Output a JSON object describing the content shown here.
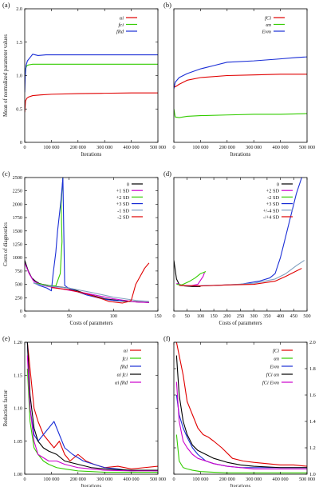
{
  "chart_data": [
    {
      "id": "a",
      "panel_label": "(a)",
      "type": "line",
      "xlabel": "Iterations",
      "ylabel": "Mean of normalized parameter values",
      "xlim": [
        0,
        500000
      ],
      "ylim": [
        0,
        2.0
      ],
      "xticks": [
        0,
        100000,
        200000,
        300000,
        400000,
        500000
      ],
      "xtick_labels": [
        "0",
        "100 000",
        "200 000",
        "300 000",
        "400 000",
        "500 000"
      ],
      "yticks": [
        0,
        0.5,
        1.0,
        1.5,
        2.0
      ],
      "ytick_labels": [
        "0",
        "0.5",
        "1.0",
        "1.5",
        "2.0"
      ],
      "legend_position": "top-right",
      "series": [
        {
          "name": "αi",
          "color": "#e00000",
          "x": [
            0,
            3000,
            8000,
            15000,
            30000,
            60000,
            100000,
            200000,
            300000,
            400000,
            500000
          ],
          "y": [
            0.45,
            0.62,
            0.66,
            0.68,
            0.7,
            0.71,
            0.72,
            0.73,
            0.735,
            0.74,
            0.74
          ]
        },
        {
          "name": "fci",
          "color": "#33cc00",
          "x": [
            0,
            3000,
            8000,
            15000,
            30000,
            60000,
            100000,
            200000,
            300000,
            400000,
            500000
          ],
          "y": [
            0.9,
            1.1,
            1.15,
            1.16,
            1.17,
            1.17,
            1.17,
            1.17,
            1.17,
            1.17,
            1.17
          ]
        },
        {
          "name": "fRd",
          "color": "#1a2ed6",
          "x": [
            0,
            2000,
            5000,
            10000,
            20000,
            30000,
            50000,
            80000,
            150000,
            300000,
            400000,
            500000
          ],
          "y": [
            0.75,
            1.0,
            1.15,
            1.22,
            1.27,
            1.32,
            1.3,
            1.31,
            1.31,
            1.31,
            1.31,
            1.31
          ]
        }
      ]
    },
    {
      "id": "b",
      "panel_label": "(b)",
      "type": "line",
      "xlabel": "Iterations",
      "xlim": [
        0,
        500000
      ],
      "ylim": [
        0,
        2.0
      ],
      "xticks": [
        0,
        100000,
        200000,
        300000,
        400000,
        500000
      ],
      "xtick_labels": [
        "0",
        "100 000",
        "200 000",
        "300 000",
        "400 000",
        "500 000"
      ],
      "legend_position": "top-right",
      "series": [
        {
          "name": "fCi",
          "color": "#e00000",
          "x": [
            0,
            5000,
            20000,
            50000,
            100000,
            200000,
            300000,
            400000,
            500000
          ],
          "y": [
            0.85,
            0.83,
            0.87,
            0.93,
            0.97,
            1.0,
            1.01,
            1.02,
            1.02
          ]
        },
        {
          "name": "αn",
          "color": "#33cc00",
          "x": [
            0,
            5000,
            20000,
            50000,
            100000,
            200000,
            300000,
            400000,
            500000
          ],
          "y": [
            0.5,
            0.38,
            0.37,
            0.39,
            0.4,
            0.41,
            0.42,
            0.42,
            0.43
          ]
        },
        {
          "name": "Evm",
          "color": "#1a2ed6",
          "x": [
            0,
            5000,
            20000,
            50000,
            100000,
            150000,
            200000,
            300000,
            400000,
            460000,
            500000
          ],
          "y": [
            0.8,
            0.9,
            0.97,
            1.03,
            1.1,
            1.15,
            1.2,
            1.22,
            1.25,
            1.27,
            1.28
          ]
        }
      ]
    },
    {
      "id": "c",
      "panel_label": "(c)",
      "type": "line",
      "xlabel": "Costs of parameters",
      "ylabel": "Costs of diagnostics",
      "xlim": [
        0,
        150
      ],
      "ylim": [
        0,
        2500
      ],
      "xticks": [
        0,
        50,
        100,
        150
      ],
      "xtick_labels": [
        "0",
        "50",
        "100",
        "150"
      ],
      "yticks": [
        0,
        250,
        500,
        750,
        1000,
        1250,
        1500,
        1750,
        2000,
        2250,
        2500
      ],
      "ytick_labels": [
        "0",
        "250",
        "500",
        "750",
        "1000",
        "1250",
        "1500",
        "1750",
        "2000",
        "2250",
        "2500"
      ],
      "legend_position": "top-right",
      "series": [
        {
          "name": "0",
          "color": "#000000",
          "x": [
            0,
            4,
            8,
            12,
            16,
            20,
            30,
            50,
            70,
            90,
            110,
            130,
            140
          ],
          "y": [
            950,
            750,
            620,
            560,
            520,
            500,
            470,
            430,
            320,
            230,
            190,
            170,
            160
          ]
        },
        {
          "name": "+1 SD",
          "color": "#cc00cc",
          "x": [
            0,
            5,
            10,
            20,
            40,
            70,
            100,
            125,
            140
          ],
          "y": [
            900,
            700,
            560,
            480,
            420,
            330,
            230,
            170,
            160
          ]
        },
        {
          "name": "+2 SD",
          "color": "#33cc00",
          "x": [
            12,
            20,
            25,
            35,
            40,
            42,
            41,
            43
          ],
          "y": [
            520,
            500,
            480,
            470,
            700,
            1300,
            2000,
            2500
          ]
        },
        {
          "name": "+3 SD",
          "color": "#1a2ed6",
          "x": [
            10,
            18,
            25,
            30,
            32,
            35,
            37,
            39,
            41,
            43,
            45,
            50,
            70,
            90,
            100,
            110
          ],
          "y": [
            530,
            470,
            430,
            380,
            700,
            1100,
            1500,
            1800,
            2100,
            2500,
            480,
            420,
            300,
            220,
            200,
            190
          ]
        },
        {
          "name": "-1 SD",
          "color": "#7f9fbf",
          "x": [
            10,
            25,
            50,
            75,
            100,
            125,
            140
          ],
          "y": [
            520,
            470,
            430,
            350,
            260,
            200,
            180
          ]
        },
        {
          "name": "-2 SD",
          "color": "#e00000",
          "x": [
            30,
            50,
            70,
            85,
            95,
            100,
            105,
            110,
            115,
            120,
            125,
            130,
            135,
            140
          ],
          "y": [
            440,
            400,
            320,
            240,
            180,
            170,
            160,
            150,
            170,
            200,
            500,
            650,
            800,
            900
          ]
        }
      ]
    },
    {
      "id": "d",
      "panel_label": "(d)",
      "type": "line",
      "xlabel": "Costs of parameters",
      "xlim": [
        0,
        500
      ],
      "ylim": [
        0,
        2500
      ],
      "xticks": [
        0,
        50,
        100,
        150,
        200,
        250,
        300,
        350,
        400,
        450,
        500
      ],
      "xtick_labels": [
        "0",
        "50",
        "100",
        "150",
        "200",
        "250",
        "300",
        "350",
        "400",
        "450",
        "500"
      ],
      "legend_position": "top-right",
      "series": [
        {
          "name": "0",
          "color": "#000000",
          "x": [
            0,
            10,
            20,
            40,
            70,
            100
          ],
          "y": [
            950,
            600,
            500,
            470,
            460,
            460
          ]
        },
        {
          "name": "+2 SD",
          "color": "#cc00cc",
          "x": [
            10,
            30,
            60,
            90,
            110,
            115
          ],
          "y": [
            520,
            480,
            470,
            500,
            650,
            720
          ]
        },
        {
          "name": "-2 SD",
          "color": "#33cc00",
          "x": [
            10,
            30,
            60,
            80,
            100,
            120
          ],
          "y": [
            500,
            490,
            560,
            620,
            700,
            740
          ]
        },
        {
          "name": "+3 SD",
          "color": "#1a2ed6",
          "x": [
            20,
            80,
            150,
            250,
            320,
            360,
            380,
            400,
            420,
            440,
            460,
            480
          ],
          "y": [
            480,
            470,
            480,
            500,
            560,
            620,
            700,
            1000,
            1400,
            1800,
            2200,
            2500
          ]
        },
        {
          "name": "+/-4 SD",
          "color": "#7f9fbf",
          "x": [
            20,
            100,
            200,
            300,
            380,
            420,
            460,
            490
          ],
          "y": [
            480,
            470,
            490,
            520,
            600,
            700,
            850,
            950
          ]
        },
        {
          "name": "-/+4 SD",
          "color": "#e00000",
          "x": [
            20,
            100,
            200,
            300,
            380,
            420,
            460,
            480
          ],
          "y": [
            480,
            470,
            490,
            500,
            560,
            650,
            750,
            800
          ]
        }
      ]
    },
    {
      "id": "e",
      "panel_label": "(e)",
      "type": "line",
      "xlabel": "Iterations",
      "ylabel": "Reduction factor",
      "xlim": [
        0,
        500000
      ],
      "ylim": [
        1.0,
        1.2
      ],
      "xticks": [
        0,
        100000,
        200000,
        300000,
        400000,
        500000
      ],
      "xtick_labels": [
        "0",
        "100 000",
        "200 000",
        "300 000",
        "400 000",
        "500 000"
      ],
      "yticks": [
        1.0,
        1.05,
        1.1,
        1.15,
        1.2
      ],
      "ytick_labels": [
        "1.00",
        "1.05",
        "1.10",
        "1.15",
        "1.20"
      ],
      "legend_position": "top-right",
      "series": [
        {
          "name": "αi",
          "color": "#e00000",
          "x": [
            10000,
            20000,
            35000,
            50000,
            70000,
            90000,
            110000,
            130000,
            150000,
            170000,
            200000,
            230000,
            260000,
            300000,
            350000,
            400000,
            450000,
            500000
          ],
          "y": [
            1.2,
            1.16,
            1.1,
            1.08,
            1.06,
            1.05,
            1.04,
            1.05,
            1.03,
            1.02,
            1.03,
            1.02,
            1.015,
            1.01,
            1.012,
            1.008,
            1.01,
            1.012
          ]
        },
        {
          "name": "fci",
          "color": "#33cc00",
          "x": [
            10000,
            20000,
            35000,
            50000,
            70000,
            90000,
            120000,
            150000,
            200000,
            250000,
            300000,
            400000,
            500000
          ],
          "y": [
            1.16,
            1.08,
            1.04,
            1.03,
            1.02,
            1.015,
            1.01,
            1.008,
            1.005,
            1.004,
            1.003,
            1.003,
            1.003
          ]
        },
        {
          "name": "fRd",
          "color": "#1a2ed6",
          "x": [
            10000,
            20000,
            35000,
            50000,
            70000,
            90000,
            110000,
            130000,
            150000,
            180000,
            220000,
            260000,
            300000,
            350000,
            400000,
            450000,
            500000
          ],
          "y": [
            1.2,
            1.1,
            1.06,
            1.05,
            1.06,
            1.07,
            1.08,
            1.06,
            1.04,
            1.03,
            1.02,
            1.015,
            1.01,
            1.008,
            1.005,
            1.006,
            1.005
          ]
        },
        {
          "name": "αi fci",
          "color": "#000000",
          "x": [
            10000,
            20000,
            35000,
            50000,
            70000,
            90000,
            120000,
            150000,
            200000,
            250000,
            300000,
            400000,
            500000
          ],
          "y": [
            1.2,
            1.12,
            1.07,
            1.05,
            1.04,
            1.035,
            1.03,
            1.02,
            1.015,
            1.01,
            1.008,
            1.006,
            1.006
          ]
        },
        {
          "name": "αi fRd",
          "color": "#cc00cc",
          "x": [
            10000,
            20000,
            35000,
            50000,
            70000,
            90000,
            120000,
            150000,
            200000,
            250000,
            300000,
            400000,
            500000
          ],
          "y": [
            1.18,
            1.1,
            1.05,
            1.03,
            1.025,
            1.02,
            1.02,
            1.015,
            1.01,
            1.008,
            1.006,
            1.005,
            1.005
          ]
        }
      ]
    },
    {
      "id": "f",
      "panel_label": "(f)",
      "type": "line",
      "xlabel": "Iterations",
      "xlim": [
        0,
        500000
      ],
      "ylim": [
        1.0,
        2.0
      ],
      "xticks": [
        0,
        100000,
        200000,
        300000,
        400000,
        500000
      ],
      "xtick_labels": [
        "0",
        "100 000",
        "200 000",
        "300 000",
        "400 000",
        "500 000"
      ],
      "yticks": [
        1.0,
        1.2,
        1.4,
        1.6,
        1.8,
        2.0
      ],
      "ytick_labels": [
        "1.0",
        "1.2",
        "1.4",
        "1.6",
        "1.8",
        "2.0"
      ],
      "y_axis_side": "right",
      "legend_position": "top-right",
      "series": [
        {
          "name": "fCi",
          "color": "#e00000",
          "x": [
            10000,
            20000,
            35000,
            50000,
            70000,
            90000,
            110000,
            130000,
            150000,
            180000,
            220000,
            260000,
            300000,
            350000,
            400000,
            450000,
            500000
          ],
          "y": [
            2.0,
            1.9,
            1.75,
            1.55,
            1.45,
            1.35,
            1.3,
            1.28,
            1.25,
            1.2,
            1.12,
            1.1,
            1.09,
            1.08,
            1.07,
            1.07,
            1.06
          ]
        },
        {
          "name": "αn",
          "color": "#33cc00",
          "x": [
            10000,
            20000,
            35000,
            50000,
            70000,
            100000,
            150000,
            200000,
            300000,
            400000,
            500000
          ],
          "y": [
            1.3,
            1.1,
            1.05,
            1.04,
            1.03,
            1.02,
            1.015,
            1.01,
            1.01,
            1.01,
            1.01
          ]
        },
        {
          "name": "Evm",
          "color": "#1a2ed6",
          "x": [
            10000,
            20000,
            35000,
            50000,
            70000,
            90000,
            120000,
            150000,
            200000,
            250000,
            300000,
            400000,
            500000
          ],
          "y": [
            1.6,
            1.45,
            1.35,
            1.28,
            1.2,
            1.15,
            1.1,
            1.08,
            1.06,
            1.05,
            1.05,
            1.05,
            1.05
          ]
        },
        {
          "name": "fCi αn",
          "color": "#000000",
          "x": [
            10000,
            20000,
            35000,
            50000,
            70000,
            90000,
            120000,
            150000,
            200000,
            250000,
            300000,
            400000,
            500000
          ],
          "y": [
            1.9,
            1.6,
            1.4,
            1.3,
            1.22,
            1.18,
            1.15,
            1.12,
            1.09,
            1.07,
            1.06,
            1.05,
            1.05
          ]
        },
        {
          "name": "fCi Evm",
          "color": "#cc00cc",
          "x": [
            10000,
            20000,
            35000,
            50000,
            70000,
            90000,
            120000,
            150000,
            200000,
            250000,
            300000,
            400000,
            500000
          ],
          "y": [
            1.7,
            1.4,
            1.25,
            1.2,
            1.15,
            1.12,
            1.1,
            1.08,
            1.06,
            1.05,
            1.04,
            1.04,
            1.04
          ]
        }
      ]
    }
  ]
}
